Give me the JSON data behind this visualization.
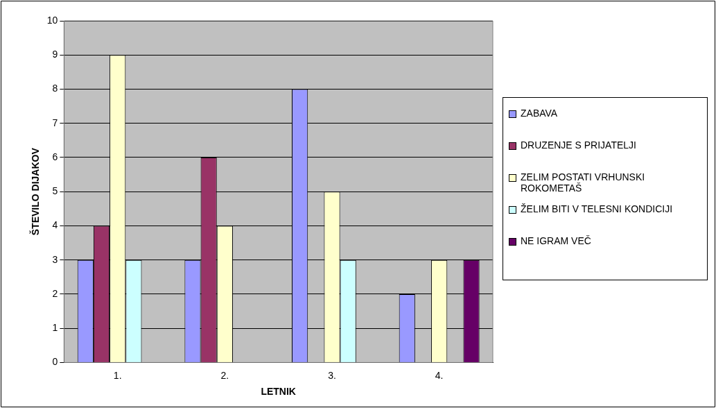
{
  "chart_data": {
    "type": "bar",
    "xlabel": "LETNIK",
    "ylabel": "ŠTEVILO DIJAKOV",
    "categories": [
      "1.",
      "2.",
      "3.",
      "4."
    ],
    "series": [
      {
        "name": "ZABAVA",
        "color": "#9999ff",
        "values": [
          3,
          3,
          8,
          2
        ]
      },
      {
        "name": "DRUZENJE S PRIJATELJI",
        "color": "#993366",
        "values": [
          4,
          6,
          null,
          null
        ]
      },
      {
        "name": "ZELIM POSTATI VRHUNSKI ROKOMETAŠ",
        "color": "#ffffcc",
        "values": [
          9,
          4,
          5,
          3
        ]
      },
      {
        "name": "ŽELIM BITI V TELESNI KONDICIJI",
        "color": "#ccffff",
        "values": [
          3,
          null,
          3,
          null
        ]
      },
      {
        "name": "NE IGRAM VEČ",
        "color": "#660066",
        "values": [
          null,
          null,
          null,
          3
        ]
      }
    ],
    "ylim": [
      0,
      10
    ],
    "yticks": [
      0,
      1,
      2,
      3,
      4,
      5,
      6,
      7,
      8,
      9,
      10
    ],
    "grid": "y",
    "legend": "right"
  }
}
